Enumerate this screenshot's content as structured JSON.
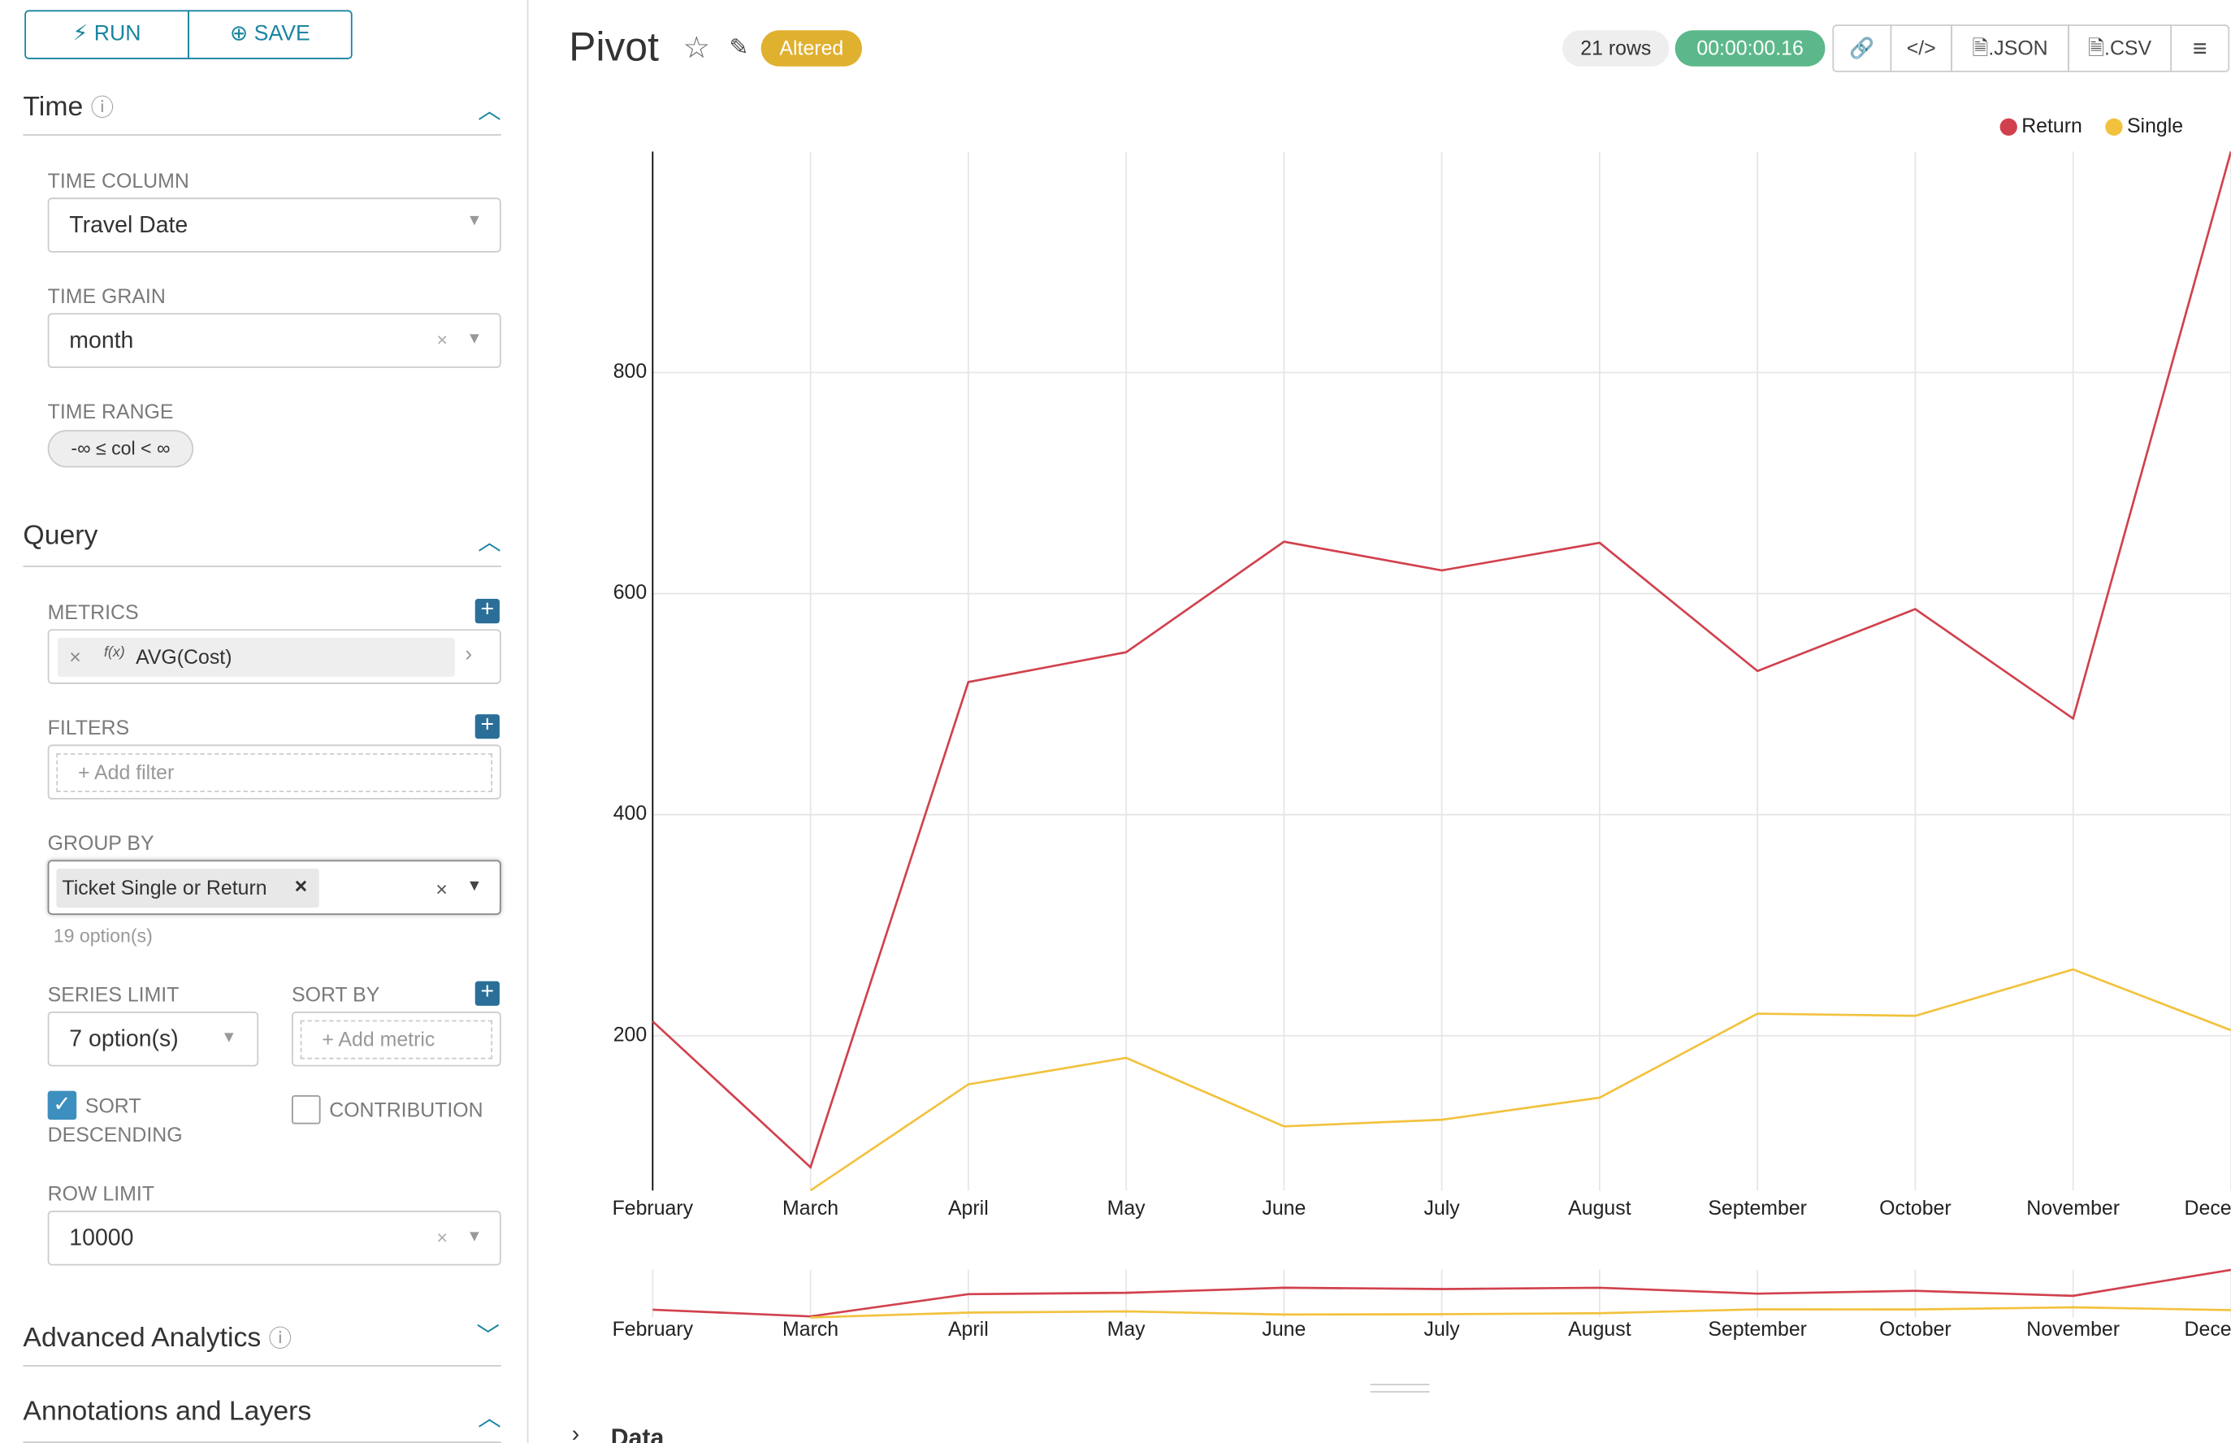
{
  "toolbar": {
    "run": "RUN",
    "save": "SAVE"
  },
  "sidebar": {
    "time": {
      "title": "Time",
      "time_column_label": "TIME COLUMN",
      "time_column": "Travel Date",
      "time_grain_label": "TIME GRAIN",
      "time_grain": "month",
      "time_range_label": "TIME RANGE",
      "time_range": "-∞ ≤ col < ∞"
    },
    "query": {
      "title": "Query",
      "metrics_label": "METRICS",
      "metric_icon": "f(x)",
      "metric": "AVG(Cost)",
      "filters_label": "FILTERS",
      "add_filter": "Add filter",
      "group_by_label": "GROUP BY",
      "group_by": "Ticket Single or Return",
      "group_by_options": "19 option(s)",
      "series_limit_label": "SERIES LIMIT",
      "series_limit": "7 option(s)",
      "sort_by_label": "SORT BY",
      "add_metric": "Add metric",
      "sort_descending": "SORT DESCENDING",
      "contribution": "CONTRIBUTION",
      "row_limit_label": "ROW LIMIT",
      "row_limit": "10000"
    },
    "advanced_analytics": "Advanced Analytics",
    "annotations": "Annotations and Layers"
  },
  "header": {
    "title": "Pivot",
    "status": "Altered",
    "rows": "21 rows",
    "timer": "00:00:00.16",
    "json": ".JSON",
    "csv": ".CSV"
  },
  "data_section": "Data",
  "chart_data": {
    "type": "line",
    "categories": [
      "February",
      "March",
      "April",
      "May",
      "June",
      "July",
      "August",
      "September",
      "October",
      "November",
      "December"
    ],
    "series": [
      {
        "name": "Return",
        "color": "#d1414d",
        "values": [
          213,
          81,
          520,
          547,
          647,
          621,
          646,
          530,
          586,
          487,
          1000
        ]
      },
      {
        "name": "Single",
        "color": "#f2c23e",
        "values": [
          null,
          60,
          156,
          180,
          118,
          124,
          144,
          220,
          218,
          260,
          205
        ]
      }
    ],
    "ylim": [
      60,
      1000
    ],
    "yticks": [
      200,
      400,
      600,
      800
    ],
    "grid": true,
    "legend": "top-right"
  }
}
